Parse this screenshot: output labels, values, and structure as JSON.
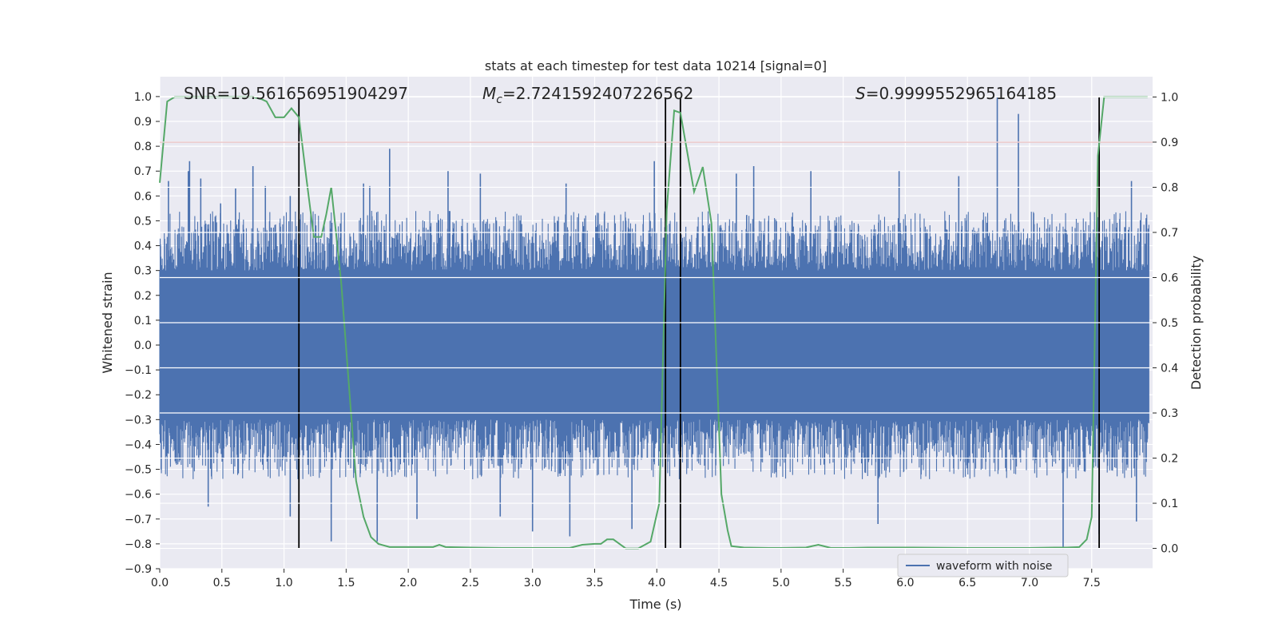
{
  "chart_data": {
    "type": "line",
    "title": "stats at each timestep for test data 10214 [signal=0]",
    "xlabel": "Time (s)",
    "ylabel": "Whitened strain",
    "y2label": "Detection probability",
    "xlim": [
      0.0,
      7.99
    ],
    "ylim": [
      -0.9,
      1.08
    ],
    "y2lim": [
      -0.045,
      1.045
    ],
    "xticks": [
      "0.0",
      "0.5",
      "1.0",
      "1.5",
      "2.0",
      "2.5",
      "3.0",
      "3.5",
      "4.0",
      "4.5",
      "5.0",
      "5.5",
      "6.0",
      "6.5",
      "7.0",
      "7.5"
    ],
    "yticks": [
      "−0.9",
      "−0.8",
      "−0.7",
      "−0.6",
      "−0.5",
      "−0.4",
      "−0.3",
      "−0.2",
      "−0.1",
      "0.0",
      "0.1",
      "0.2",
      "0.3",
      "0.4",
      "0.5",
      "0.6",
      "0.7",
      "0.8",
      "0.9",
      "1.0"
    ],
    "y2ticks": [
      "0.0",
      "0.1",
      "0.2",
      "0.3",
      "0.4",
      "0.5",
      "0.6",
      "0.7",
      "0.8",
      "0.9",
      "1.0"
    ],
    "annotations": {
      "snr": "SNR=19.561656951904297",
      "mc_symbol": "M",
      "mc_sub": "c",
      "mc_value": "=2.7241592407226562",
      "s_symbol": "S",
      "s_value": "=0.9999552965164185"
    },
    "legend": {
      "label": "waveform with noise",
      "position": "lower-right"
    },
    "threshold_probability": 0.9,
    "vertical_markers_time": [
      1.12,
      4.07,
      4.19,
      7.56
    ],
    "waveform": {
      "name": "waveform with noise",
      "color": "#4c72b0",
      "core_amplitude": 0.3,
      "typical_peak": 0.45,
      "spikes": [
        {
          "t": 0.07,
          "v": 0.66
        },
        {
          "t": 0.23,
          "v": 0.7
        },
        {
          "t": 0.24,
          "v": 0.74
        },
        {
          "t": 0.33,
          "v": 0.67
        },
        {
          "t": 0.49,
          "v": 0.57
        },
        {
          "t": 0.61,
          "v": 0.63
        },
        {
          "t": 0.75,
          "v": 0.72
        },
        {
          "t": 0.85,
          "v": 0.64
        },
        {
          "t": 1.05,
          "v": 0.6
        },
        {
          "t": 1.64,
          "v": 0.65
        },
        {
          "t": 1.69,
          "v": 0.64
        },
        {
          "t": 1.85,
          "v": 0.79
        },
        {
          "t": 2.32,
          "v": 0.7
        },
        {
          "t": 2.58,
          "v": 0.69
        },
        {
          "t": 3.27,
          "v": 0.65
        },
        {
          "t": 3.98,
          "v": 0.74
        },
        {
          "t": 4.64,
          "v": 0.69
        },
        {
          "t": 4.78,
          "v": 0.72
        },
        {
          "t": 5.24,
          "v": 0.7
        },
        {
          "t": 5.95,
          "v": 0.7
        },
        {
          "t": 6.43,
          "v": 0.68
        },
        {
          "t": 6.74,
          "v": 1.0
        },
        {
          "t": 6.91,
          "v": 0.93
        },
        {
          "t": 7.82,
          "v": 0.66
        },
        {
          "t": 0.39,
          "v": -0.65
        },
        {
          "t": 1.05,
          "v": -0.69
        },
        {
          "t": 1.38,
          "v": -0.79
        },
        {
          "t": 1.75,
          "v": -0.79
        },
        {
          "t": 2.07,
          "v": -0.7
        },
        {
          "t": 2.74,
          "v": -0.69
        },
        {
          "t": 3.0,
          "v": -0.75
        },
        {
          "t": 3.3,
          "v": -0.77
        },
        {
          "t": 3.8,
          "v": -0.74
        },
        {
          "t": 5.78,
          "v": -0.72
        },
        {
          "t": 7.27,
          "v": -0.82
        },
        {
          "t": 7.56,
          "v": -0.76
        },
        {
          "t": 7.86,
          "v": -0.71
        }
      ]
    },
    "probability": {
      "name": "detection probability",
      "color": "#55a868",
      "x": [
        0.0,
        0.06,
        0.12,
        0.2,
        0.4,
        0.6,
        0.75,
        0.82,
        0.86,
        0.93,
        1.0,
        1.06,
        1.12,
        1.18,
        1.24,
        1.3,
        1.34,
        1.38,
        1.46,
        1.52,
        1.58,
        1.64,
        1.7,
        1.76,
        1.85,
        2.0,
        2.15,
        2.2,
        2.25,
        2.3,
        2.5,
        2.75,
        3.0,
        3.3,
        3.4,
        3.5,
        3.55,
        3.6,
        3.65,
        3.7,
        3.75,
        3.85,
        3.95,
        4.02,
        4.08,
        4.14,
        4.19,
        4.25,
        4.3,
        4.37,
        4.44,
        4.52,
        4.57,
        4.6,
        4.7,
        4.9,
        5.0,
        5.2,
        5.3,
        5.4,
        5.55,
        5.7,
        6.0,
        6.5,
        7.0,
        7.2,
        7.3,
        7.4,
        7.46,
        7.5,
        7.55,
        7.6,
        7.65,
        7.75,
        7.95
      ],
      "y": [
        0.81,
        0.99,
        1.0,
        1.0,
        1.0,
        1.0,
        1.0,
        0.995,
        0.99,
        0.955,
        0.955,
        0.975,
        0.955,
        0.82,
        0.69,
        0.69,
        0.74,
        0.8,
        0.59,
        0.37,
        0.15,
        0.07,
        0.025,
        0.01,
        0.003,
        0.003,
        0.003,
        0.003,
        0.008,
        0.003,
        0.002,
        0.001,
        0.001,
        0.001,
        0.008,
        0.01,
        0.01,
        0.02,
        0.02,
        0.01,
        0.0,
        0.0,
        0.015,
        0.1,
        0.75,
        0.97,
        0.965,
        0.87,
        0.79,
        0.845,
        0.72,
        0.12,
        0.04,
        0.005,
        0.002,
        0.001,
        0.001,
        0.002,
        0.008,
        0.001,
        0.001,
        0.002,
        0.002,
        0.001,
        0.001,
        0.002,
        0.002,
        0.003,
        0.02,
        0.07,
        0.87,
        1.0,
        1.0,
        1.0,
        1.0
      ]
    }
  }
}
